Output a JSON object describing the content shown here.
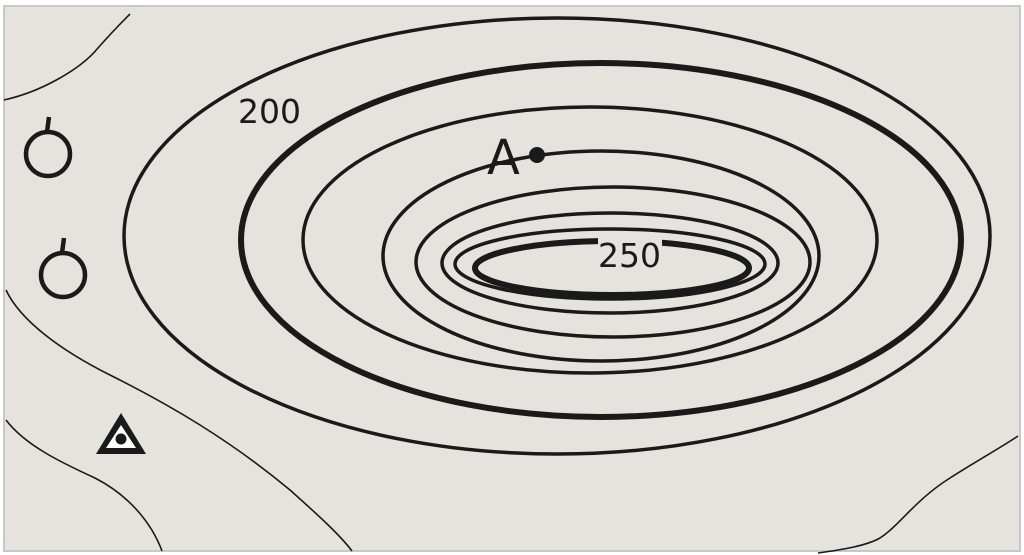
{
  "map": {
    "background_color": "#e6e2dd",
    "border_color": "#c8c8c8",
    "line_color": "#1a1a1a",
    "contour_labels": {
      "lower_index": "200",
      "upper_index": "250"
    },
    "point_marker": {
      "label": "A"
    },
    "symbols": [
      "orchard-symbol",
      "orchard-symbol",
      "triangulation-point-symbol"
    ]
  }
}
